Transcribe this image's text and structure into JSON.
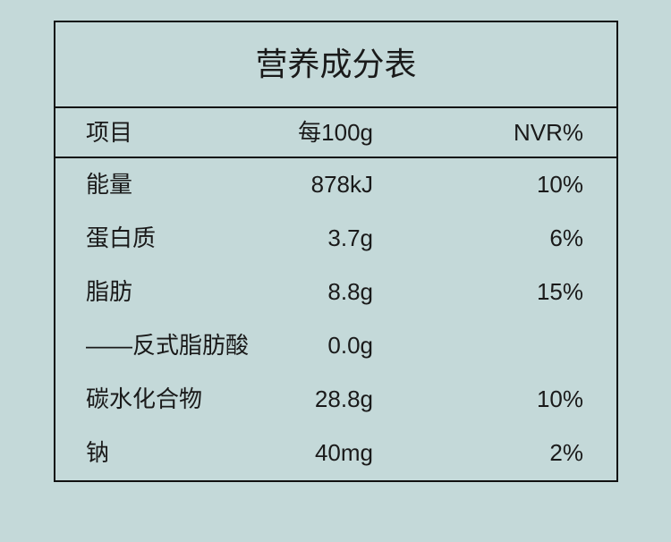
{
  "table": {
    "title": "营养成分表",
    "header": [
      "项目",
      "每100g",
      "NVR%"
    ],
    "rows": [
      [
        "能量",
        "878kJ",
        "10%"
      ],
      [
        "蛋白质",
        "3.7g",
        "6%"
      ],
      [
        "脂肪",
        "8.8g",
        "15%"
      ],
      [
        "——反式脂肪酸",
        "0.0g"
      ],
      [
        "碳水化合物",
        "28.8g",
        "10%"
      ],
      [
        "钠",
        "40mg",
        "2%"
      ]
    ]
  }
}
